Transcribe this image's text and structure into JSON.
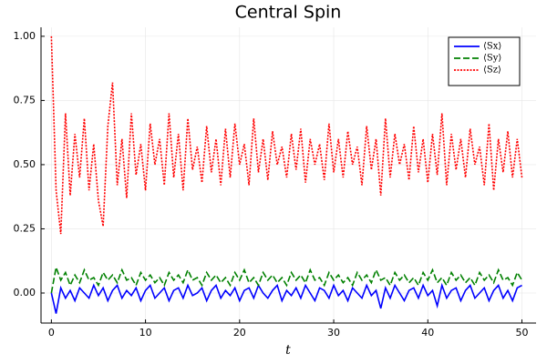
{
  "chart_data": {
    "type": "line",
    "title": "Central Spin",
    "x_label": "t",
    "x": [
      0,
      0.5,
      1,
      1.5,
      2,
      2.5,
      3,
      3.5,
      4,
      4.5,
      5,
      5.5,
      6,
      6.5,
      7,
      7.5,
      8,
      8.5,
      9,
      9.5,
      10,
      10.5,
      11,
      11.5,
      12,
      12.5,
      13,
      13.5,
      14,
      14.5,
      15,
      15.5,
      16,
      16.5,
      17,
      17.5,
      18,
      18.5,
      19,
      19.5,
      20,
      20.5,
      21,
      21.5,
      22,
      22.5,
      23,
      23.5,
      24,
      24.5,
      25,
      25.5,
      26,
      26.5,
      27,
      27.5,
      28,
      28.5,
      29,
      29.5,
      30,
      30.5,
      31,
      31.5,
      32,
      32.5,
      33,
      33.5,
      34,
      34.5,
      35,
      35.5,
      36,
      36.5,
      37,
      37.5,
      38,
      38.5,
      39,
      39.5,
      40,
      40.5,
      41,
      41.5,
      42,
      42.5,
      43,
      43.5,
      44,
      44.5,
      45,
      45.5,
      46,
      46.5,
      47,
      47.5,
      48,
      48.5,
      49,
      49.5,
      50
    ],
    "series": [
      {
        "name": "⟨Sx⟩",
        "color": "#0000ff",
        "dash": "solid",
        "values": [
          0,
          -0.08,
          0.02,
          -0.02,
          0.01,
          -0.03,
          0.02,
          0,
          -0.02,
          0.03,
          -0.01,
          0.02,
          -0.03,
          0.01,
          0.03,
          -0.02,
          0.01,
          -0.01,
          0.02,
          -0.03,
          0.01,
          0.03,
          -0.02,
          0,
          0.02,
          -0.03,
          0.01,
          0.02,
          -0.02,
          0.03,
          -0.01,
          0,
          0.02,
          -0.03,
          0.01,
          0.03,
          -0.02,
          0.01,
          -0.01,
          0.02,
          -0.03,
          0.01,
          0.02,
          -0.02,
          0.03,
          0,
          -0.02,
          0.01,
          0.03,
          -0.03,
          0.01,
          -0.01,
          0.02,
          -0.02,
          0.03,
          0,
          -0.03,
          0.02,
          0.01,
          -0.02,
          0.03,
          -0.01,
          0.01,
          -0.03,
          0.02,
          0,
          -0.02,
          0.03,
          -0.01,
          0.01,
          -0.06,
          0.02,
          -0.02,
          0.03,
          0,
          -0.03,
          0.01,
          0.02,
          -0.02,
          0.03,
          -0.01,
          0.01,
          -0.05,
          0.03,
          -0.02,
          0.01,
          0.02,
          -0.03,
          0.01,
          0.03,
          -0.02,
          0,
          0.02,
          -0.03,
          0.01,
          0.03,
          -0.02,
          0.01,
          -0.03,
          0.02,
          0.03
        ]
      },
      {
        "name": "⟨Sy⟩",
        "color": "#008000",
        "dash": "dashed",
        "values": [
          0,
          0.1,
          0.05,
          0.08,
          0.03,
          0.07,
          0.04,
          0.09,
          0.05,
          0.06,
          0.03,
          0.08,
          0.05,
          0.07,
          0.04,
          0.09,
          0.05,
          0.06,
          0.03,
          0.08,
          0.05,
          0.07,
          0.04,
          0.06,
          0.03,
          0.08,
          0.05,
          0.07,
          0.04,
          0.09,
          0.05,
          0.06,
          0.03,
          0.08,
          0.05,
          0.07,
          0.04,
          0.06,
          0.03,
          0.08,
          0.05,
          0.09,
          0.04,
          0.06,
          0.03,
          0.08,
          0.05,
          0.07,
          0.04,
          0.06,
          0.03,
          0.08,
          0.05,
          0.07,
          0.04,
          0.09,
          0.05,
          0.06,
          0.03,
          0.08,
          0.05,
          0.07,
          0.04,
          0.06,
          0.03,
          0.08,
          0.05,
          0.07,
          0.04,
          0.09,
          0.05,
          0.06,
          0.03,
          0.08,
          0.05,
          0.07,
          0.04,
          0.06,
          0.03,
          0.08,
          0.05,
          0.09,
          0.04,
          0.06,
          0.03,
          0.08,
          0.05,
          0.07,
          0.04,
          0.06,
          0.03,
          0.08,
          0.05,
          0.07,
          0.04,
          0.09,
          0.05,
          0.06,
          0.03,
          0.08,
          0.05
        ]
      },
      {
        "name": "⟨Sz⟩",
        "color": "#ff0000",
        "dash": "dotted",
        "values": [
          1.0,
          0.4,
          0.23,
          0.7,
          0.38,
          0.62,
          0.45,
          0.68,
          0.4,
          0.58,
          0.36,
          0.26,
          0.65,
          0.82,
          0.42,
          0.6,
          0.37,
          0.7,
          0.46,
          0.58,
          0.4,
          0.66,
          0.5,
          0.6,
          0.42,
          0.7,
          0.45,
          0.62,
          0.4,
          0.68,
          0.48,
          0.57,
          0.43,
          0.65,
          0.47,
          0.6,
          0.42,
          0.64,
          0.45,
          0.66,
          0.5,
          0.58,
          0.42,
          0.68,
          0.47,
          0.6,
          0.44,
          0.63,
          0.5,
          0.57,
          0.45,
          0.62,
          0.48,
          0.64,
          0.43,
          0.6,
          0.5,
          0.58,
          0.44,
          0.66,
          0.47,
          0.6,
          0.45,
          0.63,
          0.5,
          0.57,
          0.42,
          0.65,
          0.48,
          0.6,
          0.38,
          0.68,
          0.45,
          0.62,
          0.5,
          0.58,
          0.44,
          0.65,
          0.47,
          0.6,
          0.43,
          0.62,
          0.46,
          0.7,
          0.42,
          0.62,
          0.48,
          0.6,
          0.45,
          0.64,
          0.5,
          0.57,
          0.42,
          0.66,
          0.4,
          0.6,
          0.47,
          0.63,
          0.45,
          0.6,
          0.45
        ]
      }
    ],
    "xlim": [
      -1.1,
      51.5
    ],
    "ylim": [
      -0.117,
      1.035
    ],
    "xticks": [
      0,
      10,
      20,
      30,
      40,
      50
    ],
    "yticks": [
      {
        "value": 0,
        "label": "0.00"
      },
      {
        "value": 0.25,
        "label": "0.25"
      },
      {
        "value": 0.5,
        "label": "0.50"
      },
      {
        "value": 0.75,
        "label": "0.75"
      },
      {
        "value": 1,
        "label": "1.00"
      }
    ],
    "grid": true,
    "legend": "top-right"
  }
}
